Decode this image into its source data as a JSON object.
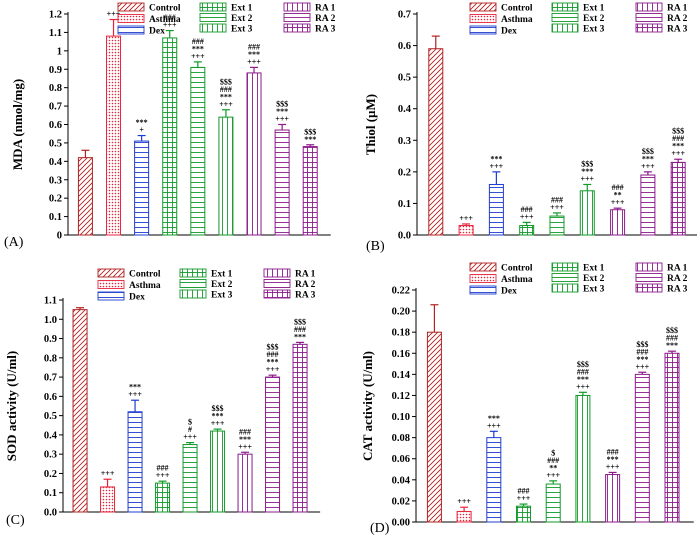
{
  "figure": {
    "description_free": true
  },
  "groups": [
    {
      "key": "control",
      "label": "Control",
      "color": "#b22222",
      "pattern": "diag"
    },
    {
      "key": "asthma",
      "label": "Asthma",
      "color": "#e8243b",
      "pattern": "dots"
    },
    {
      "key": "dex",
      "label": "Dex",
      "color": "#1e3ccf",
      "pattern": "hlines"
    },
    {
      "key": "ext1",
      "label": "Ext 1",
      "color": "#129a2a",
      "pattern": "grid"
    },
    {
      "key": "ext2",
      "label": "Ext 2",
      "color": "#129a2a",
      "pattern": "hlines"
    },
    {
      "key": "ext3",
      "label": "Ext 3",
      "color": "#129a2a",
      "pattern": "vlines"
    },
    {
      "key": "ra1",
      "label": "RA 1",
      "color": "#8b1a8b",
      "pattern": "vlines"
    },
    {
      "key": "ra2",
      "label": "RA 2",
      "color": "#8b1a8b",
      "pattern": "hlines"
    },
    {
      "key": "ra3",
      "label": "RA 3",
      "color": "#8b1a8b",
      "pattern": "grid"
    }
  ],
  "chart_data": [
    {
      "type": "bar",
      "panel": "(A)",
      "ylabel": "MDA (nmol/mg)",
      "ylim": [
        0,
        1.2
      ],
      "yticks": [
        0,
        0.1,
        0.2,
        0.3,
        0.4,
        0.5,
        0.6,
        0.7,
        0.8,
        0.9,
        1.0,
        1.1,
        1.2
      ],
      "tick_labels": [
        "0",
        "0.1",
        "0.2",
        "0.3",
        "0.4",
        "0.5",
        "0.6",
        "0.7",
        "0.8",
        "0.9",
        "1",
        "1.1",
        "1.2"
      ],
      "categories": [
        "Control",
        "Asthma",
        "Dex",
        "Ext 1",
        "Ext 2",
        "Ext 3",
        "RA 1",
        "RA 2",
        "RA 3"
      ],
      "values": [
        0.42,
        1.08,
        0.51,
        1.07,
        0.91,
        0.64,
        0.88,
        0.57,
        0.48
      ],
      "errors": [
        0.04,
        0.09,
        0.03,
        0.04,
        0.03,
        0.04,
        0.03,
        0.03,
        0.01
      ],
      "annotations": [
        [],
        [
          "+++"
        ],
        [
          "***",
          "+"
        ],
        [
          "###",
          "+++"
        ],
        [
          "###",
          "***",
          "+++"
        ],
        [
          "$$$",
          "###",
          "***",
          "+++"
        ],
        [
          "###",
          "***",
          "+++"
        ],
        [
          "$$$",
          "***",
          "+++"
        ],
        [
          "$$$",
          "***"
        ]
      ]
    },
    {
      "type": "bar",
      "panel": "(B)",
      "ylabel": "Thiol (µM)",
      "ylim": [
        0,
        0.7
      ],
      "yticks": [
        0,
        0.1,
        0.2,
        0.3,
        0.4,
        0.5,
        0.6,
        0.7
      ],
      "tick_labels": [
        "0.0",
        "0.1",
        "0.2",
        "0.3",
        "0.4",
        "0.5",
        "0.6",
        "0.7"
      ],
      "categories": [
        "Control",
        "Asthma",
        "Dex",
        "Ext 1",
        "Ext 2",
        "Ext 3",
        "RA 1",
        "RA 2",
        "RA 3"
      ],
      "values": [
        0.59,
        0.03,
        0.16,
        0.03,
        0.06,
        0.14,
        0.08,
        0.19,
        0.23
      ],
      "errors": [
        0.04,
        0.005,
        0.04,
        0.01,
        0.01,
        0.02,
        0.005,
        0.01,
        0.01
      ],
      "annotations": [
        [],
        [
          "+++"
        ],
        [
          "***",
          "+++"
        ],
        [
          "###",
          "+++"
        ],
        [
          "###",
          "+++"
        ],
        [
          "$$$",
          "***",
          "+++"
        ],
        [
          "###",
          "**",
          "+++"
        ],
        [
          "$$$",
          "***",
          "+++"
        ],
        [
          "$$$",
          "###",
          "***",
          "+++"
        ]
      ]
    },
    {
      "type": "bar",
      "panel": "(C)",
      "ylabel": "SOD activity (U/ml)",
      "ylim": [
        0,
        1.1
      ],
      "yticks": [
        0,
        0.1,
        0.2,
        0.3,
        0.4,
        0.5,
        0.6,
        0.7,
        0.8,
        0.9,
        1.0,
        1.1
      ],
      "tick_labels": [
        "0.0",
        "0.1",
        "0.2",
        "0.3",
        "0.4",
        "0.5",
        "0.6",
        "0.7",
        "0.8",
        "0.9",
        "1.0",
        "1.1"
      ],
      "categories": [
        "Control",
        "Asthma",
        "Dex",
        "Ext 1",
        "Ext 2",
        "Ext 3",
        "RA 1",
        "RA 2",
        "RA 3"
      ],
      "values": [
        1.05,
        0.13,
        0.52,
        0.15,
        0.35,
        0.42,
        0.3,
        0.7,
        0.87
      ],
      "errors": [
        0.01,
        0.04,
        0.06,
        0.01,
        0.01,
        0.01,
        0.01,
        0.01,
        0.01
      ],
      "annotations": [
        [],
        [
          "+++"
        ],
        [
          "***",
          "+++"
        ],
        [
          "###",
          "+++"
        ],
        [
          "$",
          "#",
          "+++"
        ],
        [
          "$$$",
          "***",
          "+++"
        ],
        [
          "###",
          "***",
          "+++"
        ],
        [
          "$$$",
          "###",
          "***",
          "+++"
        ],
        [
          "$$$",
          "###",
          "***"
        ]
      ]
    },
    {
      "type": "bar",
      "panel": "(D)",
      "ylabel": "CAT activity (U/ml)",
      "ylim": [
        0,
        0.22
      ],
      "yticks": [
        0,
        0.02,
        0.04,
        0.06,
        0.08,
        0.1,
        0.12,
        0.14,
        0.16,
        0.18,
        0.2,
        0.22
      ],
      "tick_labels": [
        "0.00",
        "0.02",
        "0.04",
        "0.06",
        "0.08",
        "0.10",
        "0.12",
        "0.14",
        "0.16",
        "0.18",
        "0.20",
        "0.22"
      ],
      "categories": [
        "Control",
        "Asthma",
        "Dex",
        "Ext 1",
        "Ext 2",
        "Ext 3",
        "RA 1",
        "RA 2",
        "RA 3"
      ],
      "values": [
        0.18,
        0.01,
        0.08,
        0.015,
        0.036,
        0.12,
        0.045,
        0.14,
        0.16
      ],
      "errors": [
        0.026,
        0.004,
        0.006,
        0.002,
        0.003,
        0.003,
        0.002,
        0.002,
        0.002
      ],
      "annotations": [
        [],
        [
          "+++"
        ],
        [
          "***",
          "+++"
        ],
        [
          "###",
          "+++"
        ],
        [
          "$",
          "###",
          "**",
          "+++"
        ],
        [
          "$$$",
          "###",
          "***",
          "+++"
        ],
        [
          "###",
          "***",
          "+++"
        ],
        [
          "$$$",
          "###",
          "***",
          "+++"
        ],
        [
          "$$$",
          "###",
          "***"
        ]
      ]
    }
  ]
}
